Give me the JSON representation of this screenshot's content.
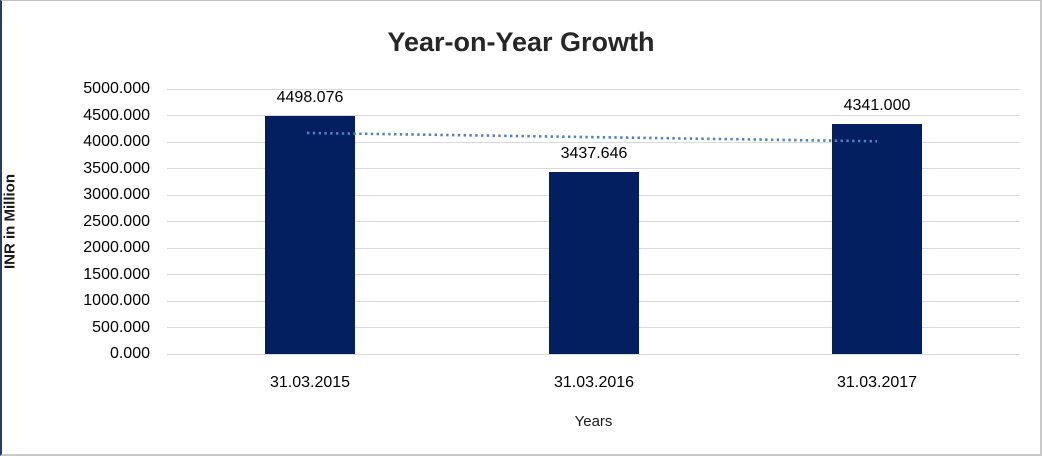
{
  "chart_data": {
    "type": "bar",
    "title": "Year-on-Year Growth",
    "xlabel": "Years",
    "ylabel": "INR in Million",
    "categories": [
      "31.03.2015",
      "31.03.2016",
      "31.03.2017"
    ],
    "values": [
      4498.076,
      3437.646,
      4341.0
    ],
    "data_labels": [
      "4498.076",
      "3437.646",
      "4341.000"
    ],
    "ylim": [
      0,
      5000
    ],
    "ytick_step": 500,
    "ytick_labels": [
      "0.000",
      "500.000",
      "1000.000",
      "1500.000",
      "2000.000",
      "2500.000",
      "3000.000",
      "3500.000",
      "4000.000",
      "4500.000",
      "5000.000"
    ],
    "grid": true,
    "legend": "none",
    "trendline": {
      "type": "linear",
      "style": "dotted"
    },
    "colors": {
      "bar": "#041f60",
      "gridline": "#d9d9d9",
      "trendline": "#4f81bd",
      "title_text": "#262626",
      "label_text": "#000000"
    }
  }
}
